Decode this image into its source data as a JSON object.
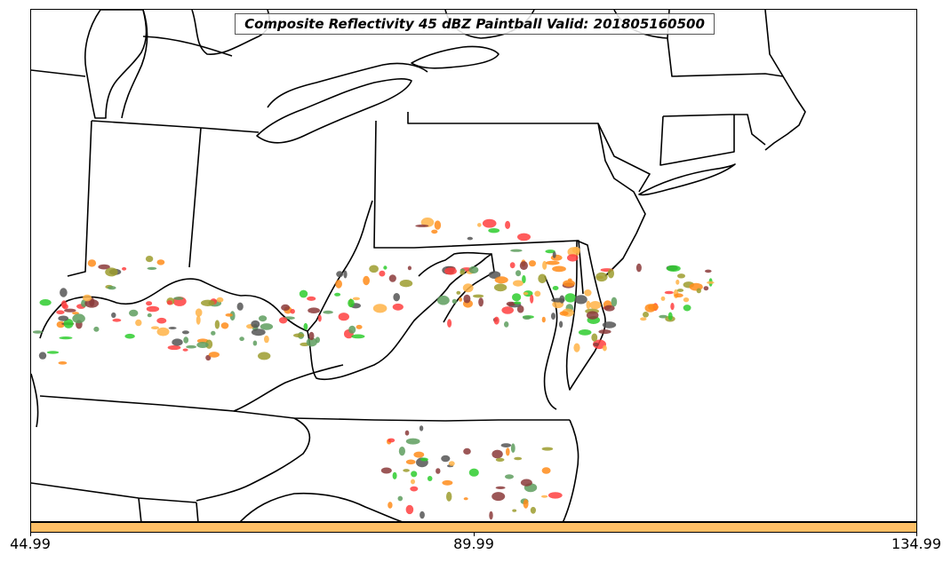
{
  "map": {
    "title": "Composite Reflectivity 45 dBZ Paintball Valid: 201805160500",
    "region": "Ohio Valley and Mid-Atlantic",
    "colors": {
      "boundary": "#000000",
      "background": "#ffffff",
      "members": [
        "#ff4040",
        "#ffb347",
        "#2ecc2e",
        "#5e9e5e",
        "#8b3a3a",
        "#9c9c2e",
        "#555555",
        "#ff8c1a"
      ]
    }
  },
  "colorbar": {
    "color": "#ffbf66",
    "tick_labels": [
      "44.99",
      "89.99",
      "134.99"
    ]
  }
}
